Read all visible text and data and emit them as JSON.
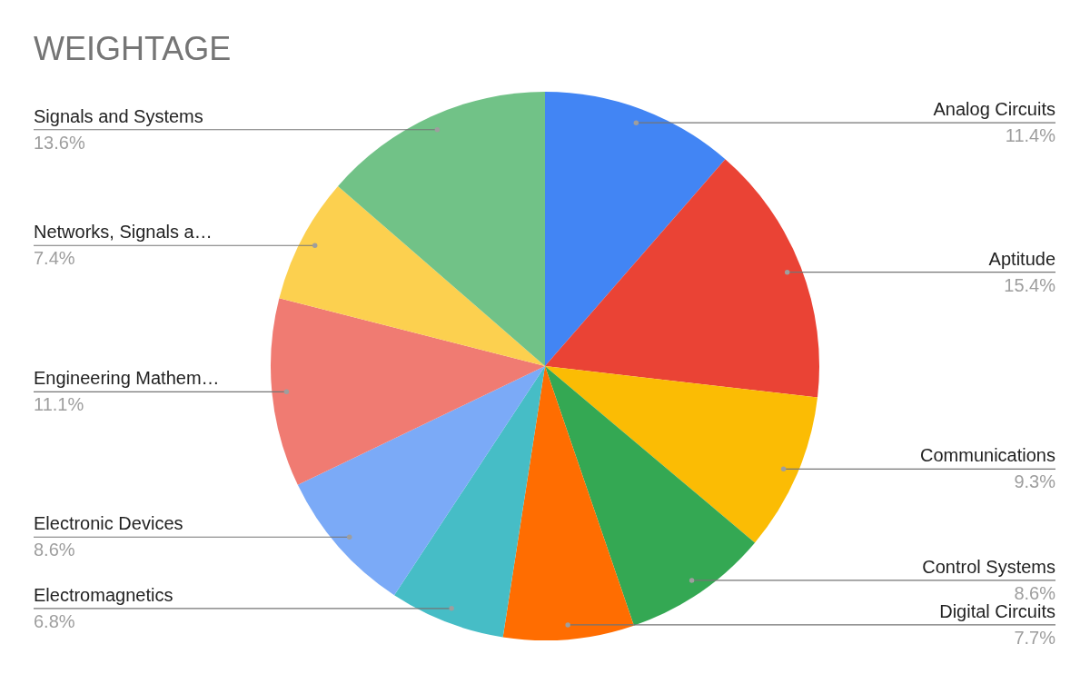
{
  "chart_data": {
    "type": "pie",
    "title": "WEIGHTAGE",
    "categories": [
      "Analog Circuits",
      "Aptitude",
      "Communications",
      "Control Systems",
      "Digital Circuits",
      "Electromagnetics",
      "Electronic Devices",
      "Engineering Mathem…",
      "Networks, Signals a…",
      "Signals and Systems"
    ],
    "values": [
      11.4,
      15.4,
      9.3,
      8.6,
      7.7,
      6.8,
      8.6,
      11.1,
      7.4,
      13.6
    ],
    "value_labels": [
      "11.4%",
      "15.4%",
      "9.3%",
      "8.6%",
      "7.7%",
      "6.8%",
      "8.6%",
      "11.1%",
      "7.4%",
      "13.6%"
    ],
    "colors": [
      "#4285f4",
      "#ea4335",
      "#fbbc04",
      "#34a853",
      "#ff6d01",
      "#46bdc6",
      "#7baaf7",
      "#f07b72",
      "#fcd04f",
      "#71c287"
    ]
  }
}
